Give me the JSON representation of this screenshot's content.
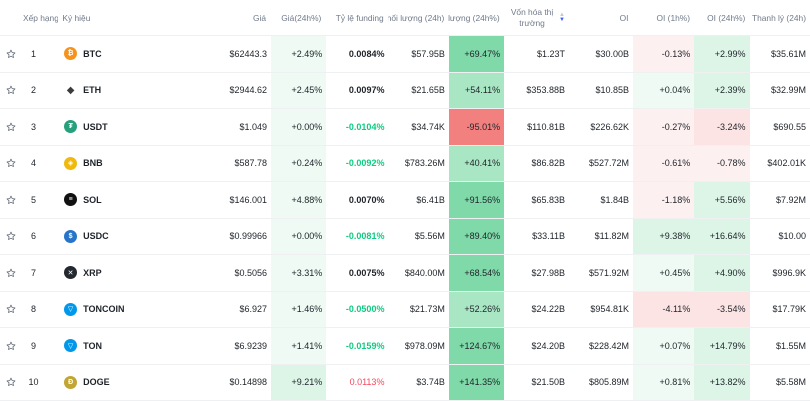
{
  "header": {
    "rank": "Xếp hạng",
    "symbol": "Ký hiệu",
    "price": "Giá",
    "change24h": "Giá(24h%)",
    "funding": "Tỷ lệ funding",
    "volume": "Khối lượng (24h)",
    "volume_change": "Khối lượng (24h%)",
    "market_cap": "Vốn hóa thị trường",
    "oi": "OI",
    "oi_1h": "OI (1h%)",
    "oi_24h": "OI (24h%)",
    "oi_value": "Thanh lý (24h)"
  },
  "colors": {
    "pos_strong": "#7fd9a8",
    "pos_mid": "#a9e6c4",
    "pos_light": "#dcf5e7",
    "pos_faint": "#eefaf3",
    "neg_strong": "#f2807f",
    "neg_light": "#fde4e4",
    "neg_faint": "#fdf0f0"
  },
  "rows": [
    {
      "rank": "1",
      "symbol": "BTC",
      "icon": "bitcoin-icon",
      "icon_color": "#f7931a",
      "icon_glyph": "₿",
      "price": "$62443.3",
      "chg": "+2.49%",
      "chg_bg": "pos_faint",
      "funding": "0.0084%",
      "funding_style": "bold",
      "vol": "$57.95B",
      "volchg": "+69.47%",
      "volchg_bg": "pos_strong",
      "mcap": "$1.23T",
      "oi": "$30.00B",
      "oi1h": "-0.13%",
      "oi1h_bg": "neg_faint",
      "oi24": "+2.99%",
      "oi24_bg": "pos_light",
      "oiv": "$35.61M"
    },
    {
      "rank": "2",
      "symbol": "ETH",
      "icon": "ethereum-icon",
      "icon_color": "#3c3c3d",
      "icon_glyph": "◆",
      "price": "$2944.62",
      "chg": "+2.45%",
      "chg_bg": "pos_faint",
      "funding": "0.0097%",
      "funding_style": "bold",
      "vol": "$21.65B",
      "volchg": "+54.11%",
      "volchg_bg": "pos_mid",
      "mcap": "$353.88B",
      "oi": "$10.85B",
      "oi1h": "+0.04%",
      "oi1h_bg": "pos_faint",
      "oi24": "+2.39%",
      "oi24_bg": "pos_light",
      "oiv": "$32.99M"
    },
    {
      "rank": "3",
      "symbol": "USDT",
      "icon": "tether-icon",
      "icon_color": "#26a17b",
      "icon_glyph": "₮",
      "price": "$1.049",
      "chg": "+0.00%",
      "chg_bg": "pos_faint",
      "funding": "-0.0104%",
      "funding_style": "pos",
      "vol": "$34.74K",
      "volchg": "-95.01%",
      "volchg_bg": "neg_strong",
      "mcap": "$110.81B",
      "oi": "$226.62K",
      "oi1h": "-0.27%",
      "oi1h_bg": "neg_faint",
      "oi24": "-3.24%",
      "oi24_bg": "neg_light",
      "oiv": "$690.55"
    },
    {
      "rank": "4",
      "symbol": "BNB",
      "icon": "bnb-icon",
      "icon_color": "#f0b90b",
      "icon_glyph": "◈",
      "price": "$587.78",
      "chg": "+0.24%",
      "chg_bg": "pos_faint",
      "funding": "-0.0092%",
      "funding_style": "pos",
      "vol": "$783.26M",
      "volchg": "+40.41%",
      "volchg_bg": "pos_mid",
      "mcap": "$86.82B",
      "oi": "$527.72M",
      "oi1h": "-0.61%",
      "oi1h_bg": "neg_faint",
      "oi24": "-0.78%",
      "oi24_bg": "neg_faint",
      "oiv": "$402.01K"
    },
    {
      "rank": "5",
      "symbol": "SOL",
      "icon": "solana-icon",
      "icon_color": "#111111",
      "icon_glyph": "≡",
      "price": "$146.001",
      "chg": "+4.88%",
      "chg_bg": "pos_faint",
      "funding": "0.0070%",
      "funding_style": "bold",
      "vol": "$6.41B",
      "volchg": "+91.56%",
      "volchg_bg": "pos_strong",
      "mcap": "$65.83B",
      "oi": "$1.84B",
      "oi1h": "-1.18%",
      "oi1h_bg": "neg_faint",
      "oi24": "+5.56%",
      "oi24_bg": "pos_light",
      "oiv": "$7.92M"
    },
    {
      "rank": "6",
      "symbol": "USDC",
      "icon": "usdc-icon",
      "icon_color": "#2775ca",
      "icon_glyph": "$",
      "price": "$0.99966",
      "chg": "+0.00%",
      "chg_bg": "pos_faint",
      "funding": "-0.0081%",
      "funding_style": "pos",
      "vol": "$5.56M",
      "volchg": "+89.40%",
      "volchg_bg": "pos_strong",
      "mcap": "$33.11B",
      "oi": "$11.82M",
      "oi1h": "+9.38%",
      "oi1h_bg": "pos_light",
      "oi24": "+16.64%",
      "oi24_bg": "pos_light",
      "oiv": "$10.00"
    },
    {
      "rank": "7",
      "symbol": "XRP",
      "icon": "xrp-icon",
      "icon_color": "#23292f",
      "icon_glyph": "✕",
      "price": "$0.5056",
      "chg": "+3.31%",
      "chg_bg": "pos_faint",
      "funding": "0.0075%",
      "funding_style": "bold",
      "vol": "$840.00M",
      "volchg": "+68.54%",
      "volchg_bg": "pos_strong",
      "mcap": "$27.98B",
      "oi": "$571.92M",
      "oi1h": "+0.45%",
      "oi1h_bg": "pos_faint",
      "oi24": "+4.90%",
      "oi24_bg": "pos_light",
      "oiv": "$996.9K"
    },
    {
      "rank": "8",
      "symbol": "TONCOIN",
      "icon": "toncoin-icon",
      "icon_color": "#0098ea",
      "icon_glyph": "▽",
      "price": "$6.927",
      "chg": "+1.46%",
      "chg_bg": "pos_faint",
      "funding": "-0.0500%",
      "funding_style": "pos",
      "vol": "$21.73M",
      "volchg": "+52.26%",
      "volchg_bg": "pos_mid",
      "mcap": "$24.22B",
      "oi": "$954.81K",
      "oi1h": "-4.11%",
      "oi1h_bg": "neg_light",
      "oi24": "-3.54%",
      "oi24_bg": "neg_light",
      "oiv": "$17.79K"
    },
    {
      "rank": "9",
      "symbol": "TON",
      "icon": "ton-icon",
      "icon_color": "#0098ea",
      "icon_glyph": "▽",
      "price": "$6.9239",
      "chg": "+1.41%",
      "chg_bg": "pos_faint",
      "funding": "-0.0159%",
      "funding_style": "pos",
      "vol": "$978.09M",
      "volchg": "+124.67%",
      "volchg_bg": "pos_strong",
      "mcap": "$24.20B",
      "oi": "$228.42M",
      "oi1h": "+0.07%",
      "oi1h_bg": "pos_faint",
      "oi24": "+14.79%",
      "oi24_bg": "pos_light",
      "oiv": "$1.55M"
    },
    {
      "rank": "10",
      "symbol": "DOGE",
      "icon": "dogecoin-icon",
      "icon_color": "#c2a633",
      "icon_glyph": "Ð",
      "price": "$0.14898",
      "chg": "+9.21%",
      "chg_bg": "pos_light",
      "funding": "0.0113%",
      "funding_style": "neg",
      "vol": "$3.74B",
      "volchg": "+141.35%",
      "volchg_bg": "pos_strong",
      "mcap": "$21.50B",
      "oi": "$805.89M",
      "oi1h": "+0.81%",
      "oi1h_bg": "pos_faint",
      "oi24": "+13.82%",
      "oi24_bg": "pos_light",
      "oiv": "$5.58M"
    }
  ]
}
